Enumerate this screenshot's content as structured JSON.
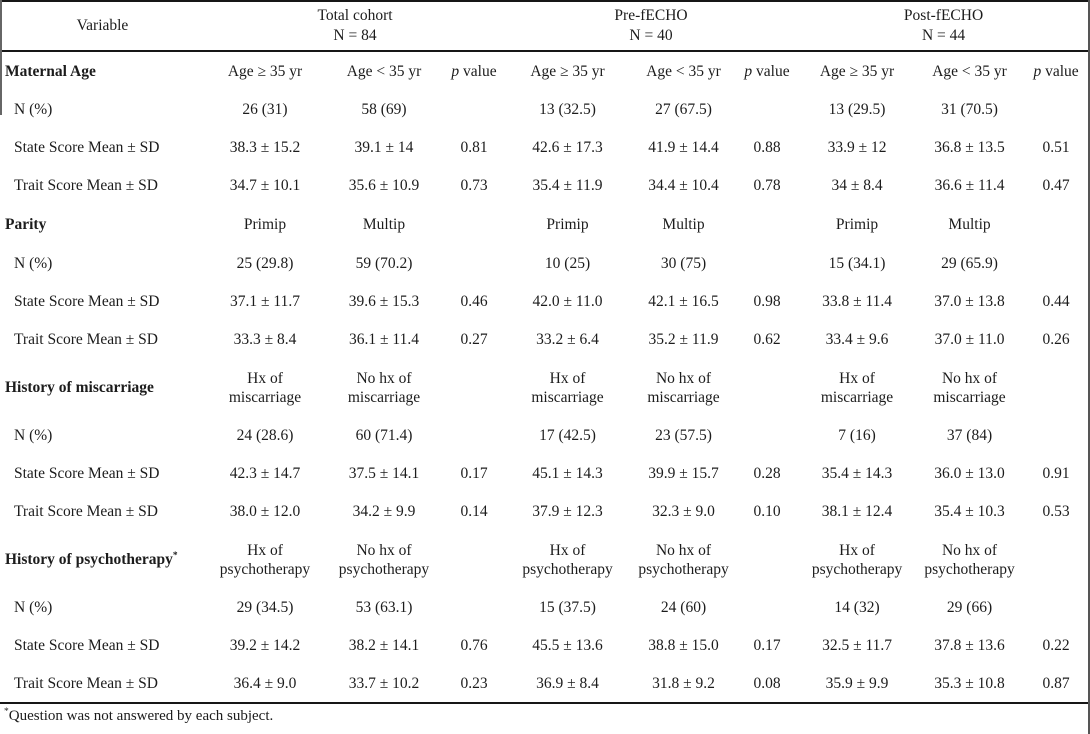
{
  "table": {
    "header": {
      "variable": "Variable",
      "groups": [
        {
          "name": "Total cohort",
          "n": "N = 84"
        },
        {
          "name": "Pre-fECHO",
          "n": "N = 40"
        },
        {
          "name": "Post-fECHO",
          "n": "N = 44"
        }
      ]
    },
    "p_label": {
      "italic": "p",
      "rest": " value"
    },
    "sections": [
      {
        "title": "Maternal Age",
        "mark": "",
        "tall": false,
        "show_p_label": true,
        "subheaders": [
          "Age ≥ 35 yr",
          "Age < 35 yr"
        ],
        "rows": [
          {
            "label": "N (%)",
            "cells": [
              "26 (31)",
              "58 (69)",
              "",
              "13 (32.5)",
              "27 (67.5)",
              "",
              "13 (29.5)",
              "31 (70.5)",
              ""
            ]
          },
          {
            "label": "State Score Mean ± SD",
            "cells": [
              "38.3 ± 15.2",
              "39.1 ± 14",
              "0.81",
              "42.6 ± 17.3",
              "41.9 ± 14.4",
              "0.88",
              "33.9 ± 12",
              "36.8 ± 13.5",
              "0.51"
            ]
          },
          {
            "label": "Trait Score Mean ± SD",
            "cells": [
              "34.7 ± 10.1",
              "35.6 ± 10.9",
              "0.73",
              "35.4 ± 11.9",
              "34.4 ± 10.4",
              "0.78",
              "34 ± 8.4",
              "36.6 ± 11.4",
              "0.47"
            ]
          }
        ]
      },
      {
        "title": "Parity",
        "mark": "",
        "tall": false,
        "show_p_label": false,
        "subheaders": [
          "Primip",
          "Multip"
        ],
        "rows": [
          {
            "label": "N (%)",
            "cells": [
              "25 (29.8)",
              "59 (70.2)",
              "",
              "10 (25)",
              "30 (75)",
              "",
              "15 (34.1)",
              "29 (65.9)",
              ""
            ]
          },
          {
            "label": "State Score Mean ± SD",
            "cells": [
              "37.1 ± 11.7",
              "39.6 ± 15.3",
              "0.46",
              "42.0 ± 11.0",
              "42.1 ± 16.5",
              "0.98",
              "33.8 ± 11.4",
              "37.0 ± 13.8",
              "0.44"
            ]
          },
          {
            "label": "Trait Score Mean ± SD",
            "cells": [
              "33.3 ± 8.4",
              "36.1 ± 11.4",
              "0.27",
              "33.2 ± 6.4",
              "35.2 ± 11.9",
              "0.62",
              "33.4 ± 9.6",
              "37.0 ± 11.0",
              "0.26"
            ]
          }
        ]
      },
      {
        "title": "History of miscarriage",
        "mark": "",
        "tall": true,
        "show_p_label": false,
        "subheaders": [
          "Hx of miscarriage",
          "No hx of miscarriage"
        ],
        "rows": [
          {
            "label": "N (%)",
            "cells": [
              "24 (28.6)",
              "60 (71.4)",
              "",
              "17 (42.5)",
              "23 (57.5)",
              "",
              "7 (16)",
              "37 (84)",
              ""
            ]
          },
          {
            "label": "State Score Mean ± SD",
            "cells": [
              "42.3 ± 14.7",
              "37.5 ± 14.1",
              "0.17",
              "45.1 ± 14.3",
              "39.9 ± 15.7",
              "0.28",
              "35.4 ± 14.3",
              "36.0 ± 13.0",
              "0.91"
            ]
          },
          {
            "label": "Trait Score Mean ± SD",
            "cells": [
              "38.0 ± 12.0",
              "34.2 ± 9.9",
              "0.14",
              "37.9 ± 12.3",
              "32.3 ± 9.0",
              "0.10",
              "38.1 ± 12.4",
              "35.4 ± 10.3",
              "0.53"
            ]
          }
        ]
      },
      {
        "title": "History of psychotherapy",
        "mark": "*",
        "tall": true,
        "show_p_label": false,
        "subheaders": [
          "Hx of psychotherapy",
          "No hx of psychotherapy"
        ],
        "rows": [
          {
            "label": "N (%)",
            "cells": [
              "29 (34.5)",
              "53 (63.1)",
              "",
              "15 (37.5)",
              "24 (60)",
              "",
              "14 (32)",
              "29 (66)",
              ""
            ]
          },
          {
            "label": "State Score Mean ± SD",
            "cells": [
              "39.2 ± 14.2",
              "38.2 ± 14.1",
              "0.76",
              "45.5 ± 13.6",
              "38.8 ± 15.0",
              "0.17",
              "32.5 ± 11.7",
              "37.8 ± 13.6",
              "0.22"
            ]
          },
          {
            "label": "Trait Score Mean ± SD",
            "cells": [
              "36.4 ± 9.0",
              "33.7 ± 10.2",
              "0.23",
              "36.9 ± 8.4",
              "31.8 ± 9.2",
              "0.08",
              "35.9 ± 9.9",
              "35.3 ± 10.8",
              "0.87"
            ]
          }
        ]
      }
    ],
    "footnote": {
      "mark": "*",
      "text": "Question was not answered by each subject."
    }
  },
  "colors": {
    "text": "#1c1c1c",
    "rule": "#161616",
    "background": "#ffffff"
  }
}
